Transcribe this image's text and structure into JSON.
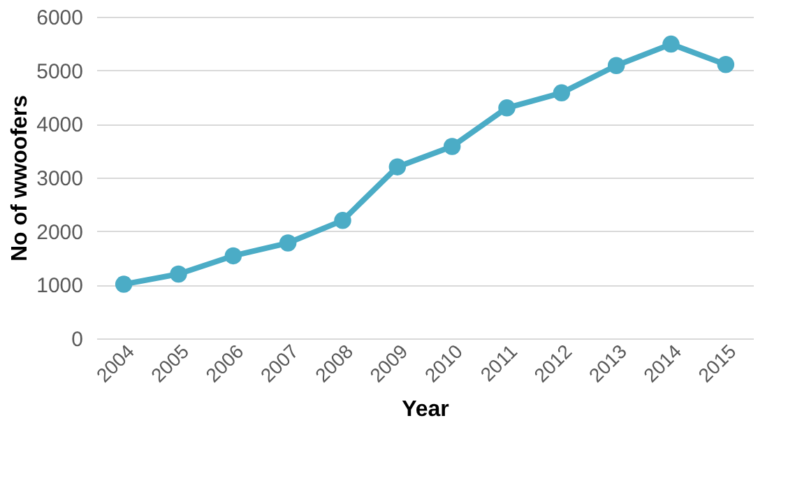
{
  "chart_data": {
    "type": "line",
    "xlabel": "Year",
    "ylabel": "No of wwoofers",
    "categories": [
      "2004",
      "2005",
      "2006",
      "2007",
      "2008",
      "2009",
      "2010",
      "2011",
      "2012",
      "2013",
      "2014",
      "2015"
    ],
    "series": [
      {
        "color": "#4bacc6",
        "values": [
          1010,
          1200,
          1540,
          1780,
          2200,
          3200,
          3580,
          4300,
          4580,
          5090,
          5490,
          5110
        ]
      }
    ],
    "ylim": [
      0,
      6000
    ],
    "yticks": [
      0,
      1000,
      2000,
      3000,
      4000,
      5000,
      6000
    ],
    "grid": "y",
    "marker": "circle",
    "line_style": "solid",
    "legend": false
  }
}
